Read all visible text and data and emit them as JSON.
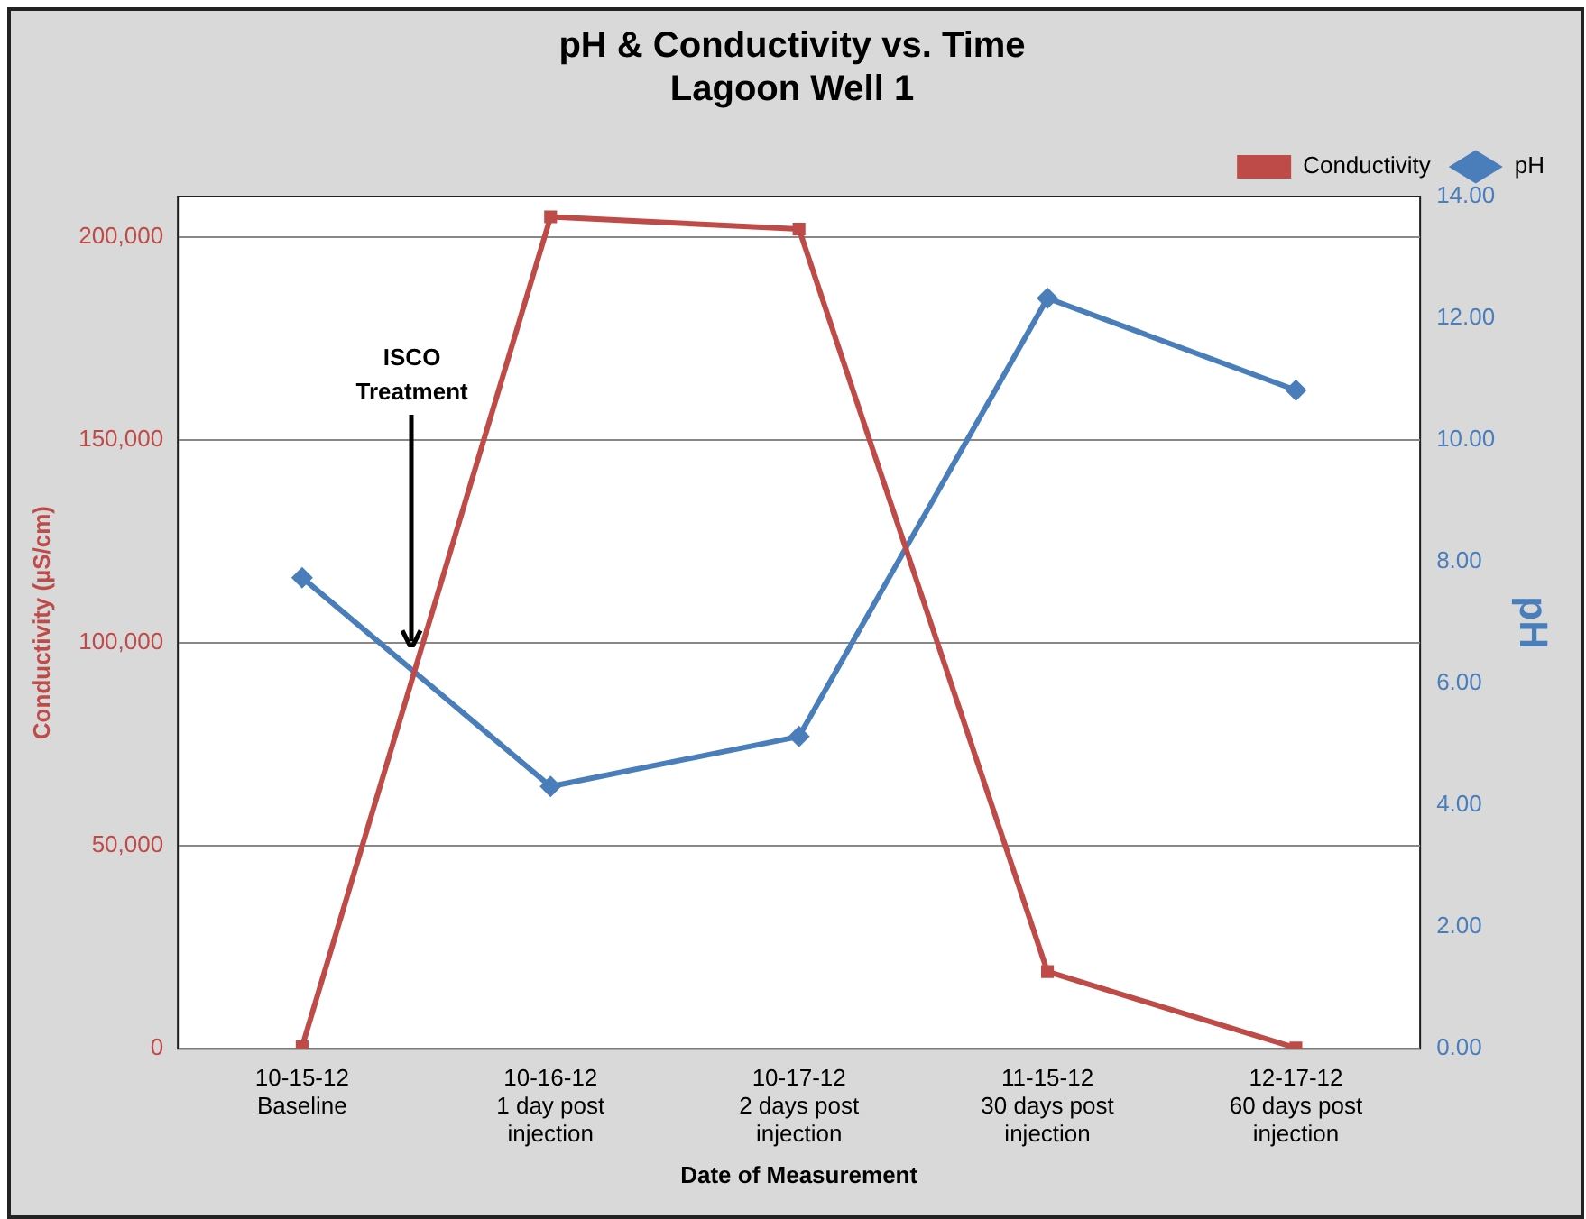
{
  "chart_data": {
    "type": "line",
    "title": "pH & Conductivity vs. Time",
    "subtitle": "Lagoon Well 1",
    "xlabel": "Date of Measurement",
    "ylabel": "Conductivity (µS/cm)",
    "y2label": "pH",
    "categories": [
      "10-15-12\nBaseline",
      "10-16-12\n1 day post\ninjection",
      "10-17-12\n2 days post\ninjection",
      "11-15-12\n30 days post\ninjection",
      "12-17-12\n60 days post\ninjection"
    ],
    "series": [
      {
        "name": "Conductivity",
        "color": "#be4b48",
        "marker": "square",
        "values": [
          500,
          205000,
          202000,
          19000,
          200
        ]
      },
      {
        "name": "pH",
        "color": "#4a7ebb",
        "marker": "diamond",
        "axis": "y2",
        "values": [
          7.74,
          4.31,
          5.13,
          12.33,
          10.82
        ]
      }
    ],
    "ylim": [
      0,
      210000
    ],
    "yticks": [
      {
        "value": 0,
        "label": "0"
      },
      {
        "value": 50000,
        "label": "50,000"
      },
      {
        "value": 100000,
        "label": "100,000"
      },
      {
        "value": 150000,
        "label": "150,000"
      },
      {
        "value": 200000,
        "label": "200,000"
      }
    ],
    "y2lim": [
      0,
      14
    ],
    "y2ticks": [
      {
        "value": 0,
        "label": "0.00"
      },
      {
        "value": 2,
        "label": "2.00"
      },
      {
        "value": 4,
        "label": "4.00"
      },
      {
        "value": 6,
        "label": "6.00"
      },
      {
        "value": 8,
        "label": "8.00"
      },
      {
        "value": 10,
        "label": "10.00"
      },
      {
        "value": 12,
        "label": "12.00"
      },
      {
        "value": 14,
        "label": "14.00"
      }
    ],
    "annotations": [
      "ISCO Treatment"
    ],
    "grid": "y",
    "legend": "top right",
    "line_style": "solid"
  }
}
